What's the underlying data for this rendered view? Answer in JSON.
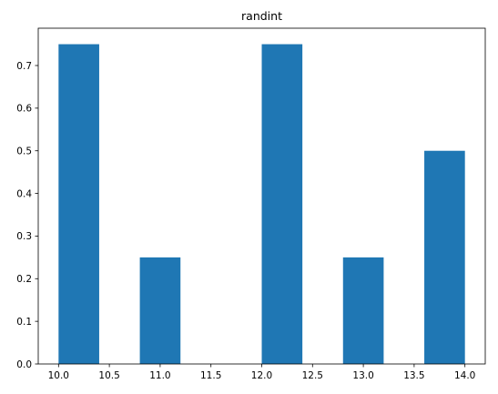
{
  "chart_data": {
    "type": "bar",
    "title": "randint",
    "xlabel": "",
    "ylabel": "",
    "xlim": [
      9.8,
      14.2
    ],
    "ylim": [
      0,
      0.7875
    ],
    "bins": [
      {
        "x0": 10.0,
        "x1": 10.4,
        "value": 0.75
      },
      {
        "x0": 10.4,
        "x1": 10.8,
        "value": 0.0
      },
      {
        "x0": 10.8,
        "x1": 11.2,
        "value": 0.25
      },
      {
        "x0": 11.2,
        "x1": 11.6,
        "value": 0.0
      },
      {
        "x0": 11.6,
        "x1": 12.0,
        "value": 0.0
      },
      {
        "x0": 12.0,
        "x1": 12.4,
        "value": 0.75
      },
      {
        "x0": 12.4,
        "x1": 12.8,
        "value": 0.0
      },
      {
        "x0": 12.8,
        "x1": 13.2,
        "value": 0.25
      },
      {
        "x0": 13.2,
        "x1": 13.6,
        "value": 0.0
      },
      {
        "x0": 13.6,
        "x1": 14.0,
        "value": 0.5
      }
    ],
    "xticks": [
      10.0,
      10.5,
      11.0,
      11.5,
      12.0,
      12.5,
      13.0,
      13.5,
      14.0
    ],
    "xtick_labels": [
      "10.0",
      "10.5",
      "11.0",
      "11.5",
      "12.0",
      "12.5",
      "13.0",
      "13.5",
      "14.0"
    ],
    "yticks": [
      0.0,
      0.1,
      0.2,
      0.3,
      0.4,
      0.5,
      0.6,
      0.7
    ],
    "ytick_labels": [
      "0.0",
      "0.1",
      "0.2",
      "0.3",
      "0.4",
      "0.5",
      "0.6",
      "0.7"
    ],
    "bar_color": "#1f77b4",
    "grid": false,
    "legend": "none"
  }
}
